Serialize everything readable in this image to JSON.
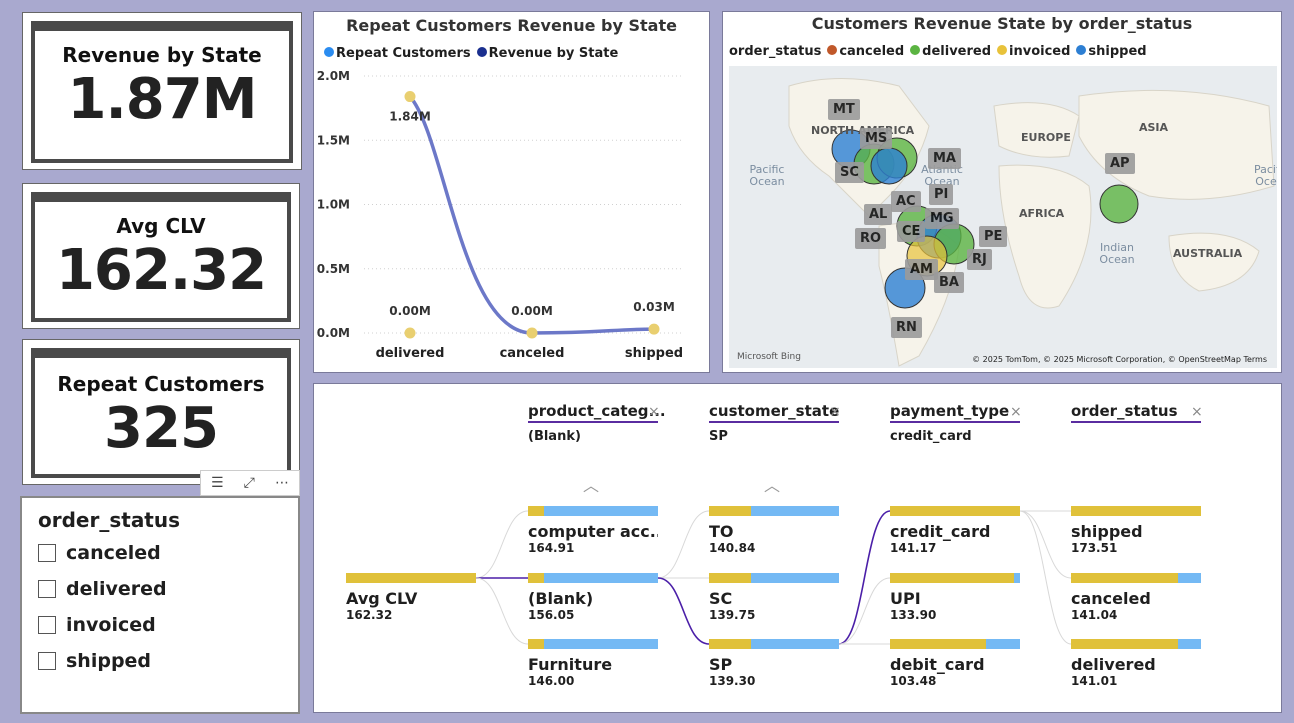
{
  "kpis": {
    "revenue": {
      "title": "Revenue by State",
      "value": "1.87M"
    },
    "clv": {
      "title": "Avg CLV",
      "value": "162.32"
    },
    "repeat": {
      "title": "Repeat Customers",
      "value": "325"
    }
  },
  "slicer": {
    "title": "order_status",
    "items": [
      {
        "label": "canceled"
      },
      {
        "label": "delivered"
      },
      {
        "label": "invoiced"
      },
      {
        "label": "shipped"
      }
    ],
    "toolbar": {
      "filter": "filter-icon",
      "focus": "focus-mode-icon",
      "more": "more-options-icon"
    }
  },
  "line_chart": {
    "title": "Repeat Customers Revenue by State",
    "legend": [
      {
        "label": "Repeat Customers",
        "color": "#2b8cf0"
      },
      {
        "label": "Revenue by State",
        "color": "#1a2f8f"
      }
    ],
    "chart_data": {
      "type": "line",
      "y_ticks": [
        "2.0M",
        "1.5M",
        "1.0M",
        "0.5M",
        "0.0M"
      ],
      "ylim": [
        0,
        2.0
      ],
      "series": [
        {
          "name": "Revenue by State",
          "color": "#6c78c8",
          "points": [
            {
              "x": "",
              "y": 1.84,
              "label": "1.84M"
            },
            {
              "x": "canceled",
              "y": 0.0,
              "label": "0.00M"
            },
            {
              "x": "shipped",
              "y": 0.03,
              "label": "0.03M"
            }
          ]
        },
        {
          "name": "Repeat Customers",
          "color": "#e9cf70",
          "points": [
            {
              "x": "delivered",
              "y": 0.0,
              "label": "0.00M"
            }
          ]
        }
      ],
      "categories": [
        "delivered",
        "canceled",
        "shipped"
      ]
    }
  },
  "map": {
    "title": "Customers Revenue State by order_status",
    "legend_title": "order_status",
    "legend": [
      {
        "label": "canceled",
        "color": "#c0582a"
      },
      {
        "label": "delivered",
        "color": "#5bb442"
      },
      {
        "label": "invoiced",
        "color": "#e8c23a"
      },
      {
        "label": "shipped",
        "color": "#2d7fd3"
      }
    ],
    "continents": [
      "NORTH AMERICA",
      "EUROPE",
      "ASIA",
      "AFRICA",
      "AUSTRALIA"
    ],
    "oceans": [
      "Pacific Ocean",
      "Atlantic Ocean",
      "Indian Ocean",
      "Pacific Oce"
    ],
    "states": [
      "MT",
      "MS",
      "MA",
      "SC",
      "AC",
      "PI",
      "AL",
      "MG",
      "PE",
      "RO",
      "CE",
      "RJ",
      "AM",
      "BA",
      "RN",
      "AP"
    ],
    "bing": "Microsoft Bing",
    "copyright": "© 2025 TomTom, © 2025 Microsoft Corporation, © OpenStreetMap  Terms"
  },
  "tree": {
    "columns": [
      {
        "header": "product_categ...",
        "selected": "(Blank)"
      },
      {
        "header": "customer_state",
        "selected": "SP"
      },
      {
        "header": "payment_type",
        "selected": "credit_card"
      },
      {
        "header": "order_status",
        "selected": ""
      }
    ],
    "root": {
      "label": "Avg CLV",
      "value": "162.32",
      "fill": 1.0
    },
    "levels": [
      [
        {
          "label": "computer acc...",
          "value": "164.91",
          "fill": 0.12
        },
        {
          "label": "(Blank)",
          "value": "156.05",
          "fill": 0.12
        },
        {
          "label": "Furniture",
          "value": "146.00",
          "fill": 0.12
        }
      ],
      [
        {
          "label": "TO",
          "value": "140.84",
          "fill": 0.32
        },
        {
          "label": "SC",
          "value": "139.75",
          "fill": 0.32
        },
        {
          "label": "SP",
          "value": "139.30",
          "fill": 0.32
        }
      ],
      [
        {
          "label": "credit_card",
          "value": "141.17",
          "fill": 1.0
        },
        {
          "label": "UPI",
          "value": "133.90",
          "fill": 0.95
        },
        {
          "label": "debit_card",
          "value": "103.48",
          "fill": 0.74
        }
      ],
      [
        {
          "label": "shipped",
          "value": "173.51",
          "fill": 1.0
        },
        {
          "label": "canceled",
          "value": "141.04",
          "fill": 0.82
        },
        {
          "label": "delivered",
          "value": "141.01",
          "fill": 0.82
        }
      ]
    ]
  }
}
